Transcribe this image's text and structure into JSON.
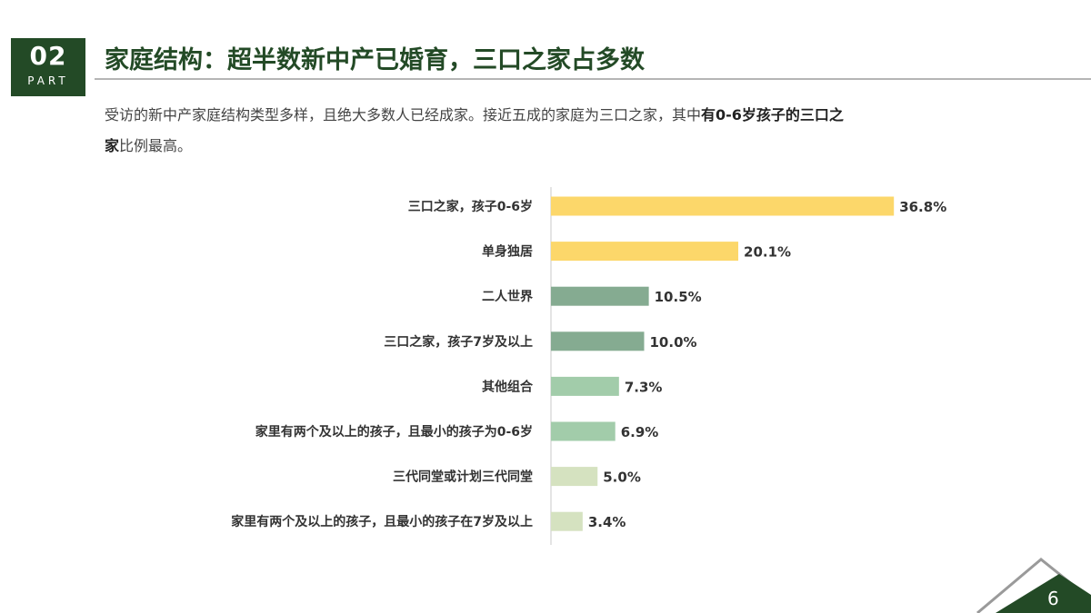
{
  "header": {
    "part_number": "02",
    "part_word": "PART",
    "title": "家庭结构：超半数新中产已婚育，三口之家占多数"
  },
  "description": {
    "text_plain": "受访的新中产家庭结构类型多样，且绝大多数人已经成家。接近五成的家庭为三口之家，其中",
    "text_bold1": "有0-6岁孩子的三口之",
    "text_bold2": "家",
    "text_tail": "比例最高。"
  },
  "chart_data": {
    "type": "bar",
    "orientation": "horizontal",
    "categories": [
      "三口之家，孩子0-6岁",
      "单身独居",
      "二人世界",
      "三口之家，孩子7岁及以上",
      "其他组合",
      "家里有两个及以上的孩子，且最小的孩子为0-6岁",
      "三代同堂或计划三代同堂",
      "家里有两个及以上的孩子，且最小的孩子在7岁及以上"
    ],
    "values": [
      36.8,
      20.1,
      10.5,
      10.0,
      7.3,
      6.9,
      5.0,
      3.4
    ],
    "value_labels": [
      "36.8%",
      "20.1%",
      "10.5%",
      "10.0%",
      "7.3%",
      "6.9%",
      "5.0%",
      "3.4%"
    ],
    "unit": "%",
    "xlim": [
      0,
      40
    ],
    "bar_colors": [
      "#fcd76a",
      "#fcd76a",
      "#85ab91",
      "#85ab91",
      "#a2ccaa",
      "#a2ccaa",
      "#d5e2c0",
      "#d5e2c0"
    ],
    "axis_color": "#c8c8c8",
    "grid": false,
    "legend": "none"
  },
  "footer": {
    "page_number": "6"
  },
  "colors": {
    "brand_green": "#234a26",
    "rule_grey": "#b5b5b5"
  }
}
